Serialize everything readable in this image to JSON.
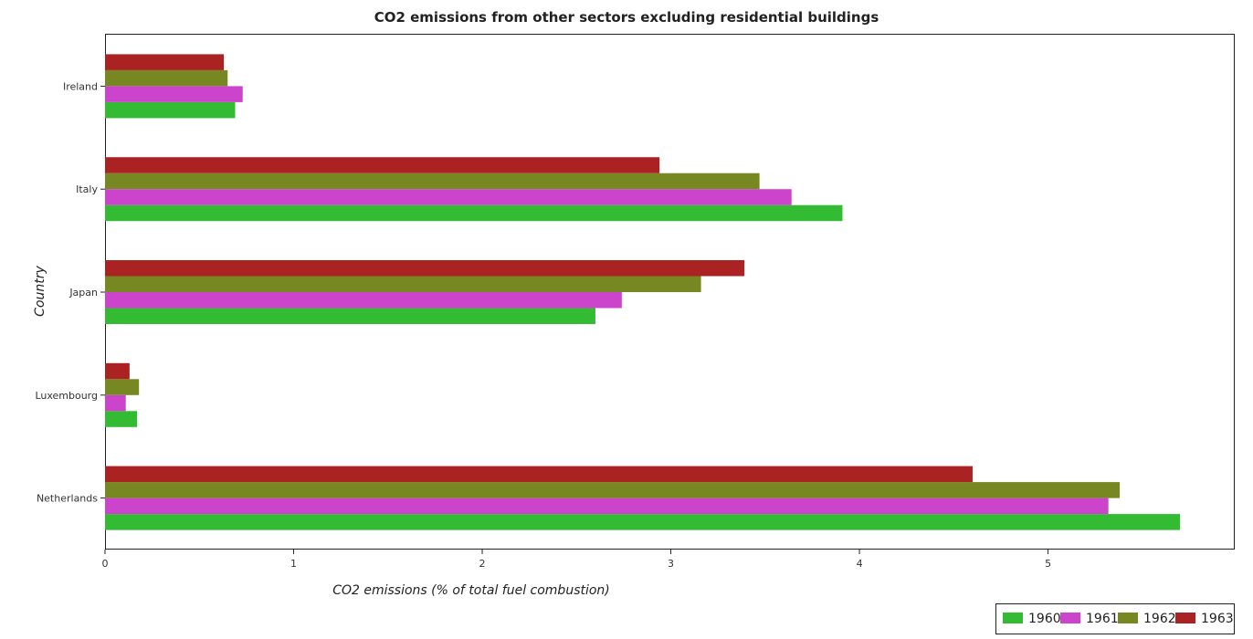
{
  "chart_data": {
    "type": "bar",
    "orientation": "horizontal",
    "title": "CO2 emissions from other sectors excluding residential buildings",
    "xlabel": "CO2 emissions (% of total fuel combustion)",
    "ylabel": "Country",
    "xlim": [
      0,
      5.985
    ],
    "xticks": [
      0,
      1,
      2,
      3,
      4,
      5
    ],
    "grid": false,
    "legend_position": "bottom-right",
    "categories": [
      "Ireland",
      "Italy",
      "Japan",
      "Luxembourg",
      "Netherlands"
    ],
    "series": [
      {
        "name": "1960",
        "color": "#33bb33",
        "values": [
          0.69,
          3.91,
          2.6,
          0.17,
          5.7
        ]
      },
      {
        "name": "1961",
        "color": "#cc44cc",
        "values": [
          0.73,
          3.64,
          2.74,
          0.11,
          5.32
        ]
      },
      {
        "name": "1962",
        "color": "#778822",
        "values": [
          0.65,
          3.47,
          3.16,
          0.18,
          5.38
        ]
      },
      {
        "name": "1963",
        "color": "#aa2222",
        "values": [
          0.63,
          2.94,
          3.39,
          0.13,
          4.6
        ]
      }
    ]
  }
}
